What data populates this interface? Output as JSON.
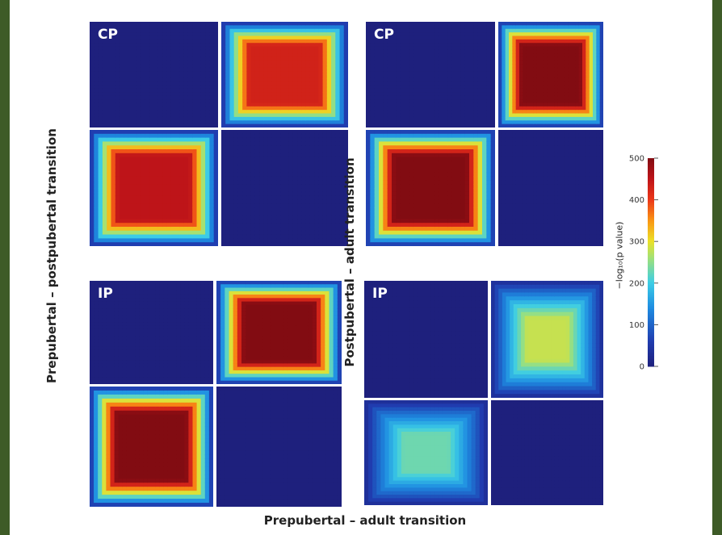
{
  "chart_data": {
    "type": "heatmap",
    "colorbar": {
      "label": "−log₁₀(p value)",
      "ticks": [
        0,
        100,
        200,
        300,
        400,
        500
      ],
      "range": [
        0,
        500
      ]
    },
    "y_labels": {
      "left": "Prepubertal – postpubertal transition",
      "right": "Postpubertal – adult transition"
    },
    "x_label": "Prepubertal – adult transition",
    "panels": [
      {
        "label": "CP",
        "tiles": [
          {
            "quadrant": "top-left",
            "peak": 0,
            "fill": "uniform"
          },
          {
            "quadrant": "top-right",
            "peak": 430,
            "fill": "rim"
          },
          {
            "quadrant": "bottom-left",
            "peak": 450,
            "fill": "rim"
          },
          {
            "quadrant": "bottom-right",
            "peak": 0,
            "fill": "uniform"
          }
        ]
      },
      {
        "label": "CP",
        "tiles": [
          {
            "quadrant": "top-left",
            "peak": 0,
            "fill": "uniform"
          },
          {
            "quadrant": "top-right",
            "peak": 500,
            "fill": "rim"
          },
          {
            "quadrant": "bottom-left",
            "peak": 500,
            "fill": "rim"
          },
          {
            "quadrant": "bottom-right",
            "peak": 0,
            "fill": "uniform"
          }
        ]
      },
      {
        "label": "IP",
        "tiles": [
          {
            "quadrant": "top-left",
            "peak": 0,
            "fill": "uniform"
          },
          {
            "quadrant": "top-right",
            "peak": 500,
            "fill": "rim"
          },
          {
            "quadrant": "bottom-left",
            "peak": 500,
            "fill": "rim"
          },
          {
            "quadrant": "bottom-right",
            "peak": 0,
            "fill": "uniform"
          }
        ]
      },
      {
        "label": "IP",
        "tiles": [
          {
            "quadrant": "top-left",
            "peak": 0,
            "fill": "uniform"
          },
          {
            "quadrant": "top-right",
            "peak": 280,
            "fill": "soft"
          },
          {
            "quadrant": "bottom-left",
            "peak": 230,
            "fill": "soft"
          },
          {
            "quadrant": "bottom-right",
            "peak": 0,
            "fill": "uniform"
          }
        ]
      }
    ]
  }
}
